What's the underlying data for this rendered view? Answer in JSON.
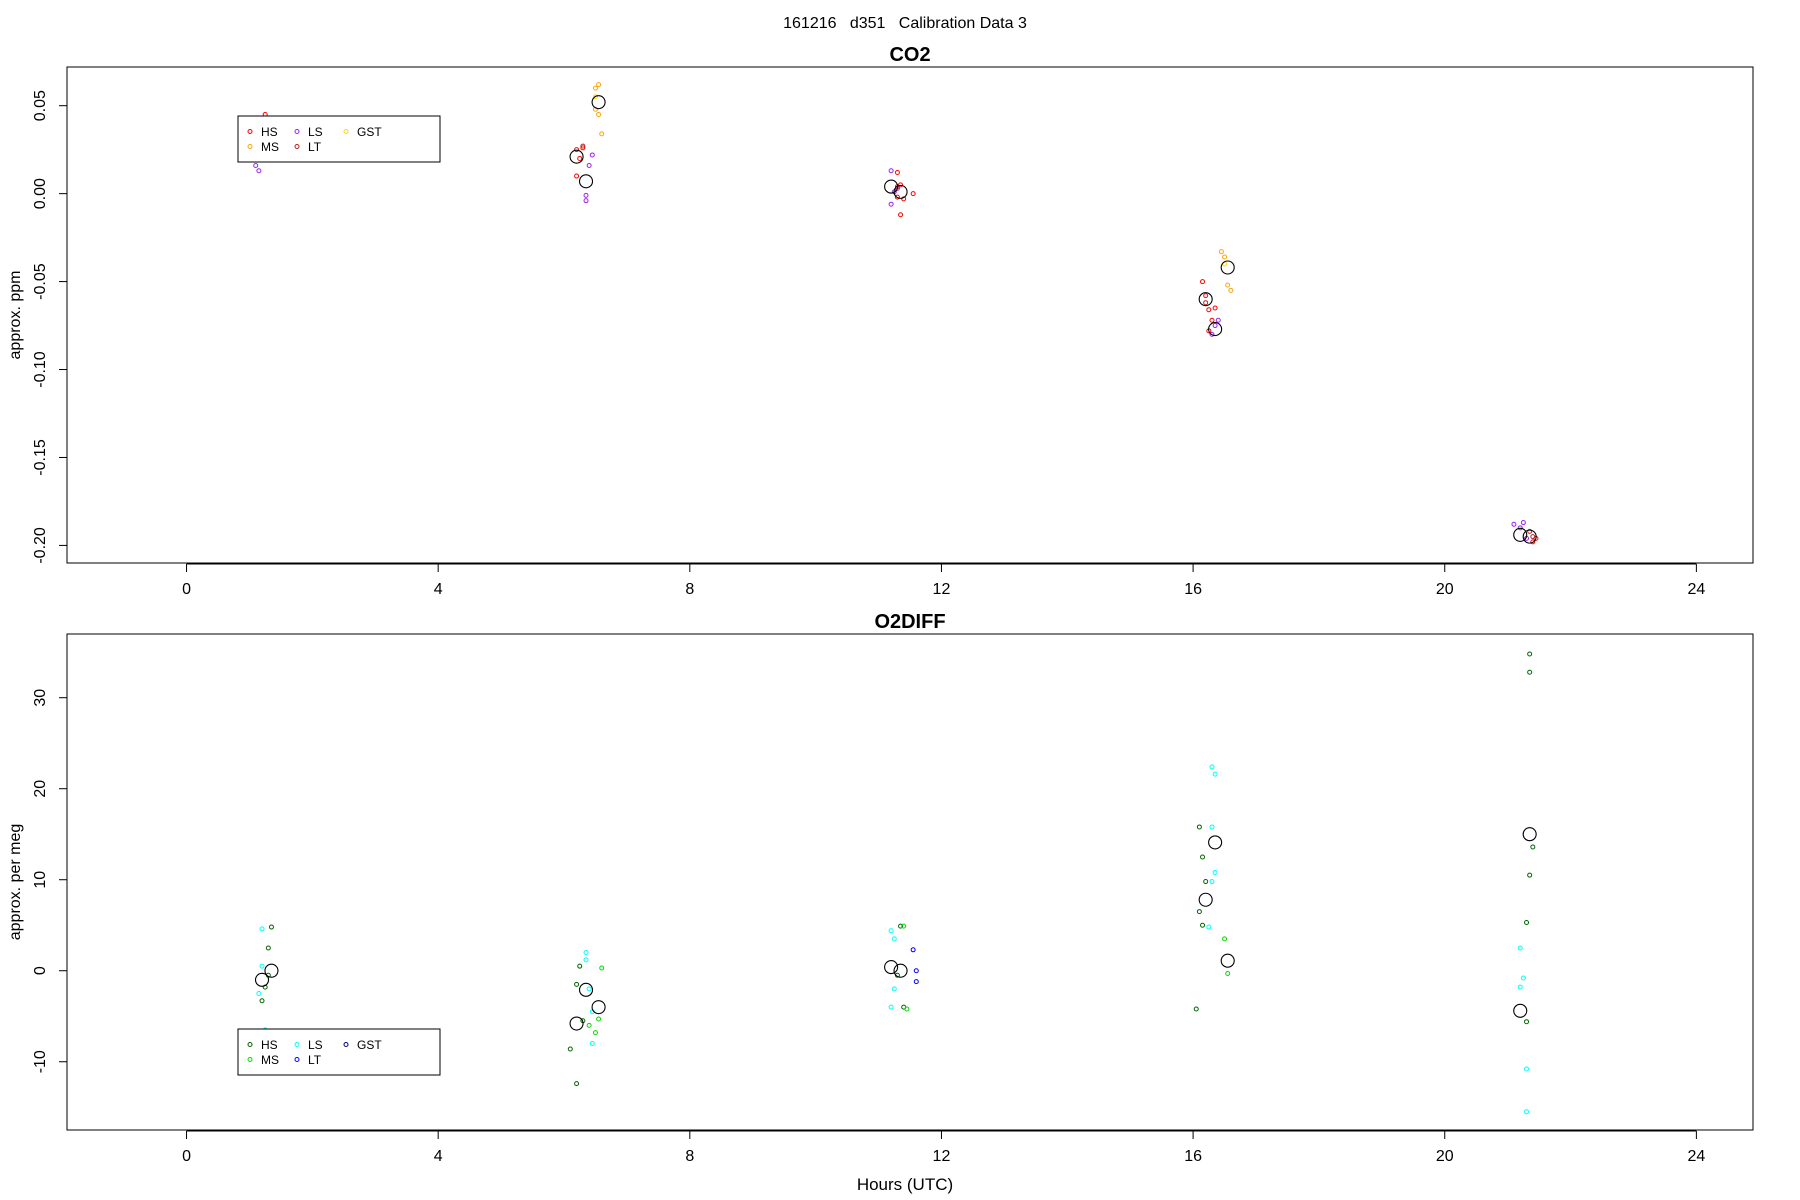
{
  "page_title": "161216   d351   Calibration Data 3",
  "x_axis_label": "Hours (UTC)",
  "chart_data": [
    {
      "type": "scatter",
      "title": "CO2",
      "ylabel": "approx. ppm",
      "xlim": [
        -1.9,
        24.9
      ],
      "ylim": [
        -0.21,
        0.072
      ],
      "x_ticks": [
        0,
        4,
        8,
        12,
        16,
        20,
        24
      ],
      "y_ticks": [
        0.05,
        0.0,
        -0.05,
        -0.1,
        -0.15,
        -0.2
      ],
      "y_tick_labels": [
        "0.05",
        "0.00",
        "-0.05",
        "-0.10",
        "-0.15",
        "-0.20"
      ],
      "legend": {
        "position": "upper-left",
        "entries": [
          {
            "name": "HS",
            "color": "#ff0000"
          },
          {
            "name": "MS",
            "color": "#ffa500"
          },
          {
            "name": "LS",
            "color": "#a020f0"
          },
          {
            "name": "LT",
            "color": "#b22222"
          },
          {
            "name": "GST",
            "color": "#ffd700"
          }
        ]
      },
      "series": [
        {
          "name": "HS",
          "color": "#ff0000",
          "points": [
            [
              1.25,
              0.045
            ],
            [
              1.3,
              0.038
            ],
            [
              1.35,
              0.03
            ],
            [
              1.2,
              0.028
            ],
            [
              1.3,
              0.033
            ],
            [
              6.2,
              0.025
            ],
            [
              6.25,
              0.02
            ],
            [
              6.2,
              0.01
            ],
            [
              6.3,
              0.026
            ],
            [
              11.3,
              0.012
            ],
            [
              11.35,
              0.005
            ],
            [
              11.4,
              -0.003
            ],
            [
              11.35,
              -0.012
            ],
            [
              11.55,
              0.0
            ],
            [
              11.3,
              -0.002
            ],
            [
              16.15,
              -0.05
            ],
            [
              16.2,
              -0.058
            ],
            [
              16.25,
              -0.066
            ],
            [
              16.3,
              -0.072
            ],
            [
              16.35,
              -0.065
            ],
            [
              16.25,
              -0.078
            ],
            [
              21.35,
              -0.192
            ],
            [
              21.4,
              -0.198
            ],
            [
              21.45,
              -0.196
            ]
          ]
        },
        {
          "name": "MS",
          "color": "#ffa500",
          "points": [
            [
              6.5,
              0.06
            ],
            [
              6.55,
              0.062
            ],
            [
              6.5,
              0.048
            ],
            [
              6.55,
              0.045
            ],
            [
              6.6,
              0.034
            ],
            [
              16.45,
              -0.033
            ],
            [
              16.5,
              -0.036
            ],
            [
              16.55,
              -0.052
            ],
            [
              16.6,
              -0.055
            ]
          ]
        },
        {
          "name": "LS",
          "color": "#a020f0",
          "points": [
            [
              1.1,
              0.016
            ],
            [
              1.15,
              0.013
            ],
            [
              1.2,
              0.028
            ],
            [
              1.2,
              0.022
            ],
            [
              6.35,
              -0.001
            ],
            [
              6.35,
              -0.004
            ],
            [
              6.4,
              0.016
            ],
            [
              6.45,
              0.022
            ],
            [
              11.2,
              0.013
            ],
            [
              11.2,
              -0.006
            ],
            [
              11.25,
              0.001
            ],
            [
              11.3,
              0.003
            ],
            [
              16.3,
              -0.08
            ],
            [
              16.35,
              -0.075
            ],
            [
              16.4,
              -0.072
            ],
            [
              21.1,
              -0.188
            ],
            [
              21.2,
              -0.19
            ],
            [
              21.25,
              -0.187
            ],
            [
              21.3,
              -0.196
            ]
          ]
        },
        {
          "name": "LT",
          "color": "#b22222",
          "points": [
            [
              6.3,
              0.027
            ],
            [
              11.3,
              0.004
            ],
            [
              16.2,
              -0.062
            ],
            [
              21.4,
              -0.195
            ]
          ]
        },
        {
          "name": "GST",
          "color": "#ffd700",
          "points": [
            [
              6.5,
              0.055
            ],
            [
              16.5,
              -0.04
            ]
          ]
        },
        {
          "name": "mean",
          "color": "#000000",
          "marker": "large-circle",
          "points": [
            [
              1.2,
              0.023
            ],
            [
              1.35,
              0.035
            ],
            [
              6.2,
              0.021
            ],
            [
              6.35,
              0.007
            ],
            [
              6.55,
              0.052
            ],
            [
              11.2,
              0.004
            ],
            [
              11.35,
              0.001
            ],
            [
              16.2,
              -0.06
            ],
            [
              16.35,
              -0.077
            ],
            [
              16.55,
              -0.042
            ],
            [
              21.2,
              -0.194
            ],
            [
              21.35,
              -0.195
            ]
          ]
        }
      ]
    },
    {
      "type": "scatter",
      "title": "O2DIFF",
      "ylabel": "approx. per meg",
      "xlabel": "Hours (UTC)",
      "xlim": [
        -1.9,
        24.9
      ],
      "ylim": [
        -17.5,
        37.0
      ],
      "x_ticks": [
        0,
        4,
        8,
        12,
        16,
        20,
        24
      ],
      "y_ticks": [
        30,
        20,
        10,
        0,
        -10
      ],
      "y_tick_labels": [
        "30",
        "20",
        "10",
        "0",
        "-10"
      ],
      "legend": {
        "position": "lower-left",
        "entries": [
          {
            "name": "HS",
            "color": "#006400"
          },
          {
            "name": "MS",
            "color": "#00dd00"
          },
          {
            "name": "LS",
            "color": "#00ffff"
          },
          {
            "name": "LT",
            "color": "#0000ff"
          },
          {
            "name": "GST",
            "color": "#00008b"
          }
        ]
      },
      "series": [
        {
          "name": "HS",
          "color": "#006400",
          "points": [
            [
              1.35,
              4.8
            ],
            [
              1.3,
              2.5
            ],
            [
              1.25,
              -1.8
            ],
            [
              1.2,
              -3.3
            ],
            [
              1.3,
              -0.5
            ],
            [
              6.2,
              -1.5
            ],
            [
              6.25,
              0.5
            ],
            [
              6.1,
              -8.6
            ],
            [
              6.2,
              -12.4
            ],
            [
              6.3,
              -5.5
            ],
            [
              11.35,
              4.9
            ],
            [
              11.4,
              -4.0
            ],
            [
              11.3,
              -0.5
            ],
            [
              16.1,
              15.8
            ],
            [
              16.15,
              12.5
            ],
            [
              16.2,
              9.8
            ],
            [
              16.1,
              6.5
            ],
            [
              16.15,
              5.0
            ],
            [
              16.05,
              -4.2
            ],
            [
              21.35,
              34.8
            ],
            [
              21.35,
              32.8
            ],
            [
              21.4,
              13.6
            ],
            [
              21.35,
              10.5
            ],
            [
              21.3,
              5.3
            ],
            [
              21.3,
              -5.6
            ]
          ]
        },
        {
          "name": "MS",
          "color": "#00dd00",
          "points": [
            [
              6.4,
              -6.0
            ],
            [
              6.5,
              -6.8
            ],
            [
              6.6,
              0.3
            ],
            [
              6.55,
              -5.3
            ],
            [
              11.4,
              4.9
            ],
            [
              11.45,
              -4.2
            ],
            [
              16.5,
              3.5
            ],
            [
              16.55,
              -0.3
            ]
          ]
        },
        {
          "name": "LS",
          "color": "#00ffff",
          "points": [
            [
              1.2,
              4.6
            ],
            [
              1.25,
              -6.5
            ],
            [
              1.15,
              -2.5
            ],
            [
              1.2,
              0.5
            ],
            [
              6.35,
              2.0
            ],
            [
              6.35,
              1.2
            ],
            [
              6.4,
              -2.0
            ],
            [
              6.45,
              -4.5
            ],
            [
              6.45,
              -8.0
            ],
            [
              11.2,
              4.4
            ],
            [
              11.25,
              3.5
            ],
            [
              11.25,
              -2.0
            ],
            [
              11.2,
              -4.0
            ],
            [
              16.3,
              22.4
            ],
            [
              16.35,
              21.6
            ],
            [
              16.3,
              15.8
            ],
            [
              16.35,
              10.8
            ],
            [
              16.3,
              9.8
            ],
            [
              16.25,
              4.8
            ],
            [
              21.2,
              2.5
            ],
            [
              21.25,
              -0.8
            ],
            [
              21.2,
              -1.8
            ],
            [
              21.3,
              -10.8
            ],
            [
              21.3,
              -15.5
            ]
          ]
        },
        {
          "name": "LT",
          "color": "#0000ff",
          "points": [
            [
              11.55,
              2.3
            ],
            [
              11.6,
              0.0
            ],
            [
              11.6,
              -1.2
            ]
          ]
        },
        {
          "name": "GST",
          "color": "#00008b",
          "points": []
        },
        {
          "name": "mean",
          "color": "#000000",
          "marker": "large-circle",
          "points": [
            [
              1.2,
              -1.0
            ],
            [
              1.35,
              0.0
            ],
            [
              6.2,
              -5.8
            ],
            [
              6.35,
              -2.1
            ],
            [
              6.55,
              -4.0
            ],
            [
              11.2,
              0.4
            ],
            [
              11.35,
              0.0
            ],
            [
              16.2,
              7.8
            ],
            [
              16.35,
              14.1
            ],
            [
              16.55,
              1.1
            ],
            [
              21.2,
              -4.4
            ],
            [
              21.35,
              15.0
            ]
          ]
        }
      ]
    }
  ]
}
